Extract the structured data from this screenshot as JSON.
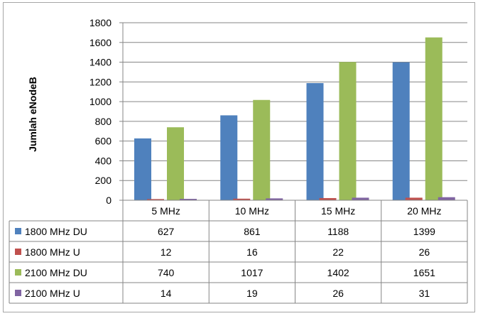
{
  "chart_data": {
    "type": "bar",
    "title": "",
    "xlabel": "",
    "ylabel": "Jumlah eNodeB",
    "ylim": [
      0,
      1800
    ],
    "yticks": [
      0,
      200,
      400,
      600,
      800,
      1000,
      1200,
      1400,
      1600,
      1800
    ],
    "grid": true,
    "legend": "data-table",
    "categories": [
      "5 MHz",
      "10 MHz",
      "15 MHz",
      "20 MHz"
    ],
    "series": [
      {
        "name": "1800 MHz DU",
        "color": "#4f81bd",
        "values": [
          627,
          861,
          1188,
          1399
        ]
      },
      {
        "name": "1800 MHz U",
        "color": "#c0504d",
        "values": [
          12,
          16,
          22,
          26
        ]
      },
      {
        "name": "2100 MHz DU",
        "color": "#9bbb59",
        "values": [
          740,
          1017,
          1402,
          1651
        ]
      },
      {
        "name": "2100 MHz U",
        "color": "#8064a2",
        "values": [
          14,
          19,
          26,
          31
        ]
      }
    ]
  }
}
